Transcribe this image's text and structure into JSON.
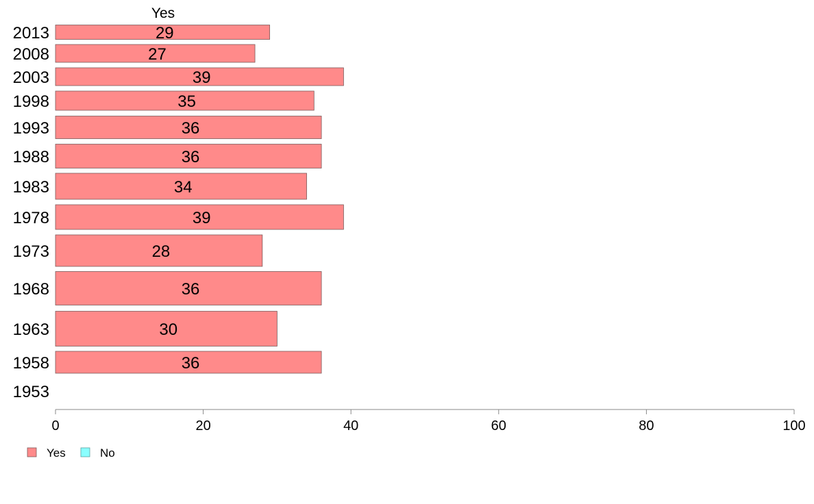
{
  "colors": {
    "yes": "#ff8a8a",
    "no": "#8affff",
    "bar_stroke": "#7a5a5a",
    "axis": "#888888"
  },
  "chart_data": {
    "type": "bar",
    "orientation": "horizontal",
    "stacked": true,
    "categories": [
      "2013",
      "2008",
      "2003",
      "1998",
      "1993",
      "1988",
      "1983",
      "1978",
      "1973",
      "1968",
      "1963",
      "1958",
      "1953"
    ],
    "series": [
      {
        "name": "Yes",
        "values": [
          29,
          27,
          39,
          35,
          36,
          36,
          34,
          39,
          28,
          36,
          30,
          36,
          null
        ]
      },
      {
        "name": "No",
        "values": [
          null,
          null,
          null,
          null,
          null,
          null,
          null,
          null,
          null,
          null,
          null,
          null,
          null
        ]
      }
    ],
    "data_labels": [
      "29",
      "27",
      "39",
      "35",
      "36",
      "36",
      "34",
      "39",
      "28",
      "36",
      "30",
      "36",
      ""
    ],
    "series_header": "Yes",
    "xlim": [
      0,
      100
    ],
    "xticks": [
      "0",
      "20",
      "40",
      "60",
      "80",
      "100"
    ],
    "grid": false,
    "legend": {
      "placement": "bottom-left",
      "entries": [
        "Yes",
        "No"
      ]
    }
  }
}
